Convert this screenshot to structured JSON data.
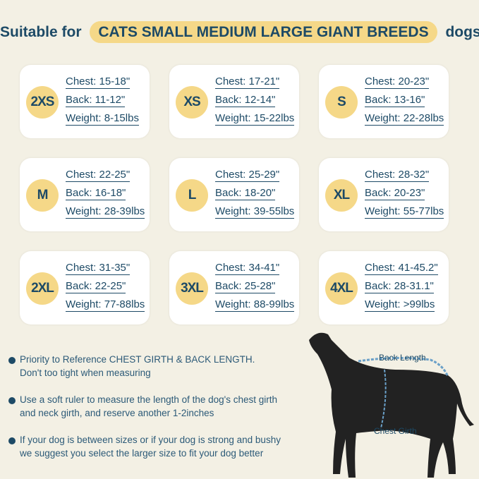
{
  "header": {
    "prefix": "Suitable for",
    "highlight": "CATS SMALL MEDIUM LARGE GIANT BREEDS",
    "suffix": "dogs"
  },
  "sizes": [
    {
      "size": "2XS",
      "chest": "Chest: 15-18\"",
      "back": "Back: 11-12\"",
      "weight": "Weight: 8-15lbs"
    },
    {
      "size": "XS",
      "chest": "Chest: 17-21\"",
      "back": "Back: 12-14\"",
      "weight": "Weight: 15-22lbs"
    },
    {
      "size": "S",
      "chest": "Chest: 20-23\"",
      "back": "Back: 13-16\"",
      "weight": "Weight: 22-28lbs"
    },
    {
      "size": "M",
      "chest": "Chest: 22-25\"",
      "back": "Back: 16-18\"",
      "weight": "Weight: 28-39lbs"
    },
    {
      "size": "L",
      "chest": "Chest: 25-29\"",
      "back": "Back: 18-20\"",
      "weight": "Weight: 39-55lbs"
    },
    {
      "size": "XL",
      "chest": "Chest: 28-32\"",
      "back": "Back: 20-23\"",
      "weight": "Weight: 55-77lbs"
    },
    {
      "size": "2XL",
      "chest": "Chest: 31-35\"",
      "back": "Back: 22-25\"",
      "weight": "Weight: 77-88lbs"
    },
    {
      "size": "3XL",
      "chest": "Chest: 34-41\"",
      "back": "Back: 25-28\"",
      "weight": "Weight: 88-99lbs"
    },
    {
      "size": "4XL",
      "chest": "Chest: 41-45.2\"",
      "back": "Back: 28-31.1\"",
      "weight": "Weight: >99lbs"
    }
  ],
  "tips": [
    {
      "line1": "Priority to Reference CHEST GIRTH & BACK LENGTH.",
      "line2": "Don't too tight when measuring"
    },
    {
      "line1": "Use a soft ruler to measure the length of the dog's chest girth",
      "line2": "and neck girth, and reserve another 1-2inches"
    },
    {
      "line1": "If your dog is between sizes or if your dog is strong and bushy",
      "line2": "we suggest you select the larger size to fit your dog better"
    }
  ],
  "diagram": {
    "back_label": "Back Length",
    "chest_label": "Chest Girth"
  },
  "colors": {
    "background": "#f3f0e4",
    "navy": "#1d4a66",
    "accent": "#f5d888"
  }
}
